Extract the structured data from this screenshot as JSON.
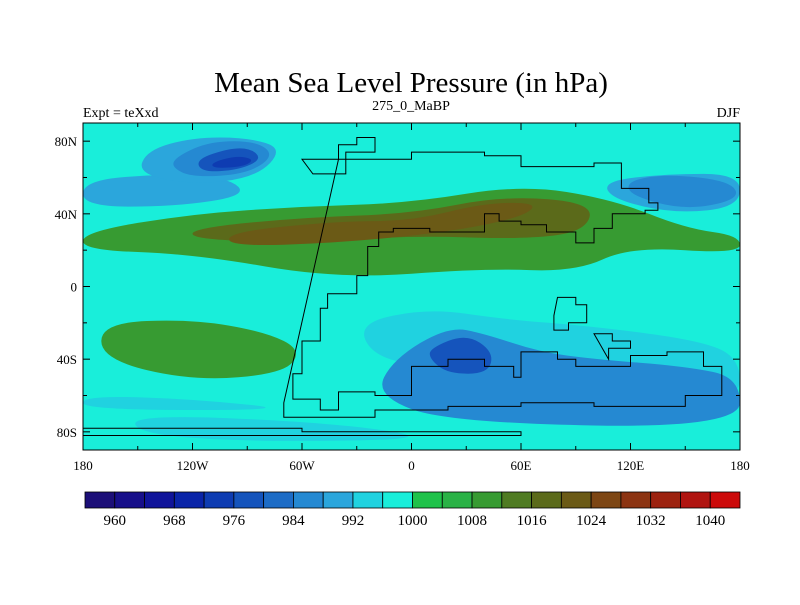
{
  "chart_data": {
    "type": "heatmap",
    "title": "Mean Sea Level Pressure (in hPa)",
    "left_label": "Expt = teXxd",
    "center_label": "275_0_MaBP",
    "right_label": "DJF",
    "x_ticks": [
      "180",
      "120W",
      "60W",
      "0",
      "60E",
      "120E",
      "180"
    ],
    "x_tick_values": [
      -180,
      -120,
      -60,
      0,
      60,
      120,
      180
    ],
    "y_ticks": [
      "80N",
      "40N",
      "0",
      "40S",
      "80S"
    ],
    "y_tick_values": [
      80,
      40,
      0,
      -40,
      -80
    ],
    "xlim": [
      -180,
      180
    ],
    "ylim": [
      -90,
      90
    ],
    "colorbar_labels": [
      "960",
      "968",
      "976",
      "984",
      "992",
      "1000",
      "1008",
      "1016",
      "1024",
      "1032",
      "1040"
    ],
    "colorbar_label_values": [
      960,
      968,
      976,
      984,
      992,
      1000,
      1008,
      1016,
      1024,
      1032,
      1040
    ],
    "levels": [
      956,
      960,
      964,
      968,
      972,
      976,
      980,
      984,
      988,
      992,
      996,
      1000,
      1004,
      1008,
      1012,
      1016,
      1020,
      1024,
      1028,
      1032,
      1036,
      1040,
      1044
    ],
    "colors": [
      "#1c0f78",
      "#170f8a",
      "#10149a",
      "#0a24a8",
      "#0e3cb2",
      "#1554bc",
      "#1d6cc6",
      "#2589d2",
      "#2ba6dc",
      "#20d2e0",
      "#19eeda",
      "#1fc24a",
      "#2ab246",
      "#379b32",
      "#4f7b22",
      "#5b6a1a",
      "#6b5a16",
      "#7d4614",
      "#8c3412",
      "#9c220f",
      "#b01410",
      "#cc0a0a"
    ],
    "regions": [
      {
        "value": 994,
        "lon": [
          -160,
          -40,
          20,
          -140
        ],
        "lat": [
          -70,
          -75,
          -85,
          -85
        ]
      },
      {
        "value": 994,
        "lon": [
          -180,
          -120,
          -60,
          -180
        ],
        "lat": [
          -60,
          -62,
          -68,
          -68
        ]
      },
      {
        "value": 991,
        "lon": [
          -180,
          -140,
          -100,
          -90,
          -130,
          -180
        ],
        "lat": [
          58,
          62,
          60,
          50,
          44,
          44
        ]
      },
      {
        "value": 991,
        "lon": [
          -145,
          -120,
          -90,
          -70,
          -85,
          -120,
          -150
        ],
        "lat": [
          75,
          82,
          82,
          76,
          60,
          56,
          62
        ]
      },
      {
        "value": 985,
        "lon": [
          -128,
          -110,
          -85,
          -75,
          -90,
          -120,
          -132
        ],
        "lat": [
          72,
          80,
          80,
          72,
          62,
          60,
          66
        ]
      },
      {
        "value": 979,
        "lon": [
          -118,
          -100,
          -88,
          -82,
          -95,
          -115
        ],
        "lat": [
          70,
          76,
          76,
          70,
          64,
          63
        ]
      },
      {
        "value": 973,
        "lon": [
          -110,
          -96,
          -86,
          -92,
          -108
        ],
        "lat": [
          68,
          72,
          70,
          66,
          65
        ]
      },
      {
        "value": 991,
        "lon": [
          105,
          140,
          180,
          180,
          145,
          110
        ],
        "lat": [
          58,
          62,
          62,
          44,
          40,
          48
        ]
      },
      {
        "value": 985,
        "lon": [
          118,
          140,
          175,
          180,
          150,
          120
        ],
        "lat": [
          58,
          62,
          58,
          48,
          42,
          50
        ]
      },
      {
        "value": 1010,
        "lon": [
          -180,
          -120,
          -60,
          0,
          60,
          110,
          150,
          180,
          180,
          120,
          90,
          40,
          -40,
          -120,
          -180
        ],
        "lat": [
          30,
          40,
          44,
          46,
          56,
          48,
          32,
          28,
          18,
          22,
          8,
          10,
          4,
          18,
          20
        ]
      },
      {
        "value": 1016,
        "lon": [
          -120,
          -60,
          0,
          50,
          100,
          95,
          60,
          0,
          -60,
          -120
        ],
        "lat": [
          32,
          38,
          40,
          50,
          46,
          30,
          26,
          28,
          24,
          26
        ]
      },
      {
        "value": 1022,
        "lon": [
          -100,
          -40,
          0,
          40,
          70,
          60,
          20,
          -40,
          -100
        ],
        "lat": [
          30,
          36,
          36,
          46,
          46,
          38,
          30,
          24,
          22
        ]
      },
      {
        "value": 1010,
        "lon": [
          -170,
          -120,
          -80,
          -60,
          -70,
          -120,
          -170
        ],
        "lat": [
          -20,
          -18,
          -25,
          -35,
          -48,
          -52,
          -40
        ]
      },
      {
        "value": 994,
        "lon": [
          -30,
          10,
          50,
          100,
          160,
          180,
          180,
          100,
          60,
          20,
          -20
        ],
        "lat": [
          -20,
          -12,
          -18,
          -22,
          -30,
          -40,
          -64,
          -56,
          -42,
          -45,
          -40
        ]
      },
      {
        "value": 986,
        "lon": [
          -10,
          20,
          40,
          70,
          100,
          150,
          180,
          180,
          20,
          -20
        ],
        "lat": [
          -40,
          -22,
          -26,
          -36,
          -40,
          -44,
          -50,
          -78,
          -75,
          -60
        ]
      },
      {
        "value": 979,
        "lon": [
          10,
          30,
          45,
          42,
          20,
          10
        ],
        "lat": [
          -34,
          -26,
          -36,
          -48,
          -48,
          -40
        ]
      }
    ],
    "coastlines": [
      [
        [
          -40,
          70
        ],
        [
          0,
          74
        ],
        [
          40,
          72
        ],
        [
          60,
          66
        ],
        [
          100,
          68
        ],
        [
          115,
          54
        ],
        [
          130,
          46
        ],
        [
          135,
          42
        ],
        [
          128,
          40
        ],
        [
          110,
          32
        ],
        [
          100,
          24
        ],
        [
          90,
          30
        ],
        [
          74,
          34
        ],
        [
          60,
          36
        ],
        [
          48,
          40
        ],
        [
          40,
          30
        ],
        [
          30,
          30
        ],
        [
          10,
          32
        ],
        [
          -10,
          30
        ],
        [
          -18,
          22
        ],
        [
          -24,
          6
        ],
        [
          -30,
          -4
        ],
        [
          -46,
          -12
        ],
        [
          -50,
          -30
        ],
        [
          -60,
          -48
        ],
        [
          -65,
          -62
        ],
        [
          -50,
          -68
        ],
        [
          -40,
          -58
        ],
        [
          -20,
          -60
        ],
        [
          0,
          -44
        ],
        [
          20,
          -40
        ],
        [
          40,
          -44
        ],
        [
          56,
          -50
        ],
        [
          60,
          -36
        ],
        [
          80,
          -40
        ],
        [
          90,
          -44
        ],
        [
          120,
          -38
        ],
        [
          140,
          -36
        ],
        [
          160,
          -44
        ],
        [
          170,
          -60
        ],
        [
          150,
          -66
        ],
        [
          100,
          -64
        ],
        [
          60,
          -66
        ],
        [
          20,
          -68
        ],
        [
          -20,
          -72
        ],
        [
          -60,
          -72
        ],
        [
          -70,
          -64
        ]
      ],
      [
        [
          -60,
          70
        ],
        [
          -40,
          78
        ],
        [
          -30,
          82
        ],
        [
          -20,
          74
        ],
        [
          -36,
          62
        ],
        [
          -54,
          62
        ]
      ],
      [
        [
          80,
          -6
        ],
        [
          90,
          -10
        ],
        [
          96,
          -20
        ],
        [
          86,
          -24
        ],
        [
          78,
          -16
        ]
      ],
      [
        [
          100,
          -26
        ],
        [
          110,
          -30
        ],
        [
          120,
          -34
        ],
        [
          108,
          -40
        ]
      ],
      [
        [
          -180,
          -78
        ],
        [
          -120,
          -78
        ],
        [
          -60,
          -80
        ],
        [
          0,
          -80
        ],
        [
          60,
          -80
        ],
        [
          60,
          -82
        ],
        [
          -180,
          -82
        ]
      ]
    ]
  }
}
